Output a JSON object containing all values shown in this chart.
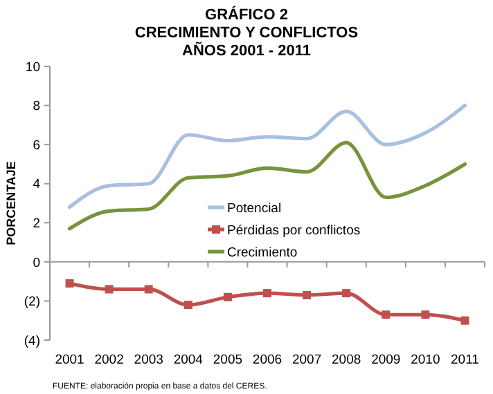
{
  "chart_data": {
    "type": "line",
    "title": "GRÁFICO 2\nCRECIMIENTO Y CONFLICTOS\nAÑOS 2001 - 2011",
    "ylabel": "PORCENTAJE",
    "categories": [
      "2001",
      "2002",
      "2003",
      "2004",
      "2005",
      "2006",
      "2007",
      "2008",
      "2009",
      "2010",
      "2011"
    ],
    "series": [
      {
        "name": "Potencial",
        "color": "#a9bfe0",
        "values": [
          2.8,
          3.9,
          4.0,
          6.5,
          6.2,
          6.4,
          6.3,
          7.7,
          6.0,
          6.6,
          8.0
        ]
      },
      {
        "name": "Pérdidas por conflictos",
        "color": "#c0504d",
        "marker": "square",
        "values": [
          -1.1,
          -1.4,
          -1.4,
          -2.2,
          -1.8,
          -1.6,
          -1.7,
          -1.6,
          -2.7,
          -2.7,
          -3.0
        ]
      },
      {
        "name": "Crecimiento",
        "color": "#77933c",
        "values": [
          1.7,
          2.6,
          2.7,
          4.3,
          4.4,
          4.8,
          4.6,
          6.1,
          3.3,
          3.9,
          5.0
        ]
      }
    ],
    "ylim": [
      -4,
      10
    ],
    "yticks": [
      {
        "value": -4,
        "label": "(4)"
      },
      {
        "value": -2,
        "label": "(2)"
      },
      0,
      2,
      4,
      6,
      8,
      10
    ],
    "legend": "center",
    "marker": "none",
    "annotations": [
      "FUENTE: elaboración propia en base a datos del CERES."
    ]
  }
}
